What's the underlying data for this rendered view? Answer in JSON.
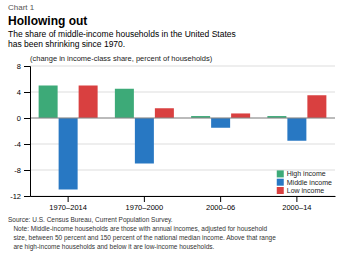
{
  "chart_data": {
    "type": "bar",
    "chart_label": "Chart 1",
    "title": "Hollowing out",
    "subtitle": "The share of middle-income households in the United States\nhas been shrinking since 1970.",
    "ylabel": "(change in income-class share, percent of households)",
    "categories": [
      "1970–2014",
      "1970–2000",
      "2000–06",
      "2000–14"
    ],
    "series": [
      {
        "name": "High income",
        "color": "#3daa78",
        "values": [
          5.0,
          4.5,
          0.3,
          0.3
        ]
      },
      {
        "name": "Middle income",
        "color": "#2878c3",
        "values": [
          -11.0,
          -7.0,
          -1.5,
          -3.5
        ]
      },
      {
        "name": "Low income",
        "color": "#d94040",
        "values": [
          5.0,
          1.5,
          0.7,
          3.5
        ]
      }
    ],
    "ylim": [
      -12,
      8
    ],
    "yticks": [
      -12,
      -8,
      -4,
      0,
      4,
      8
    ],
    "grid": true,
    "legend": "lower right",
    "source": [
      "Source: U.S. Census Bureau, Current Population Survey.",
      "   Note: Middle-income households are those with annual incomes, adjusted for household",
      "   size, between 50 percent and 150 percent of the national median income. Above that range",
      "   are high-income households and below it are low-income households."
    ]
  }
}
